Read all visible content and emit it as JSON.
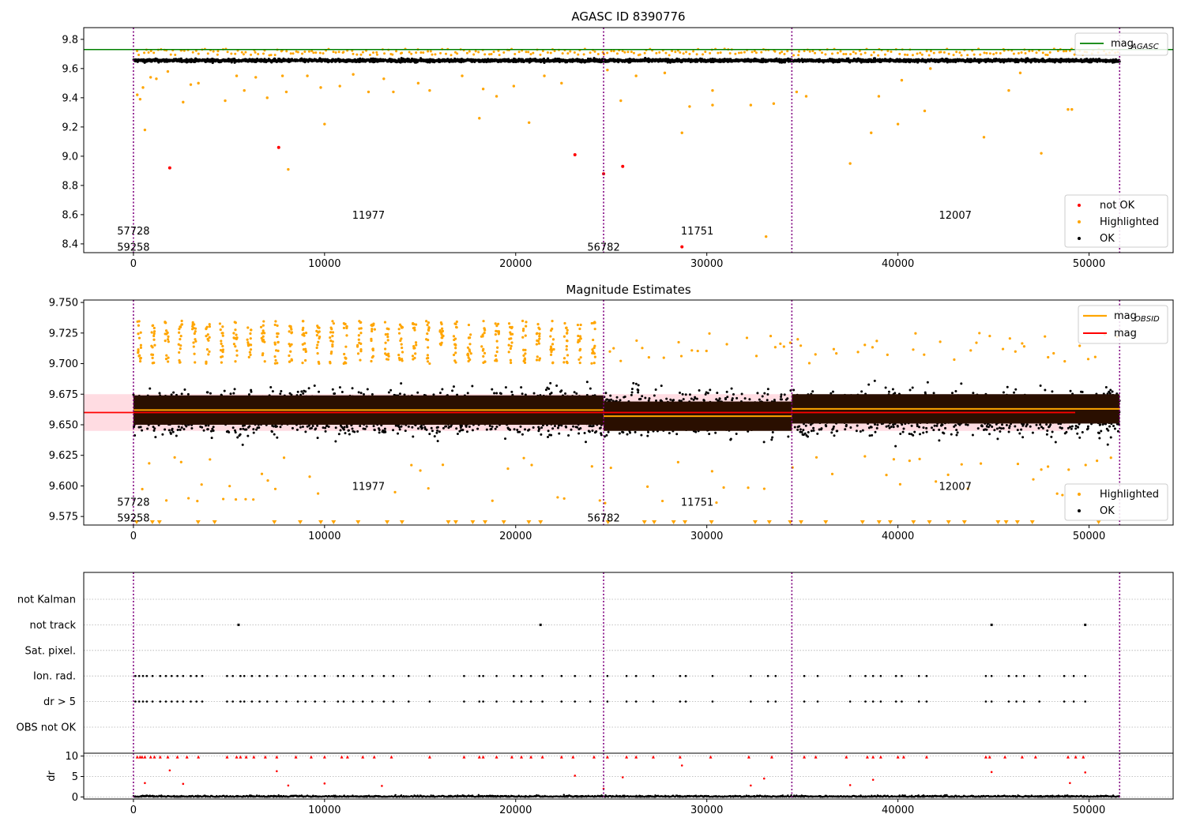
{
  "chart_data": [
    {
      "type": "scatter",
      "title": "AGASC ID 8390776",
      "xlim": [
        -2600,
        54400
      ],
      "ylim": [
        8.34,
        9.88
      ],
      "xticks": [
        0,
        10000,
        20000,
        30000,
        40000,
        50000
      ],
      "yticks": [
        8.4,
        8.6,
        8.8,
        9.0,
        9.2,
        9.4,
        9.6,
        9.8
      ],
      "ytick_decimals": 1,
      "hlines": [
        {
          "y": 9.73,
          "color": "#008000",
          "label": "mag_AGASC"
        }
      ],
      "obs_boundaries": [
        0,
        24600,
        34450,
        51600
      ],
      "obs_labels": [
        {
          "text": "57728",
          "x": 0,
          "y": 8.49
        },
        {
          "text": "59258",
          "x": 0,
          "y": 8.38
        },
        {
          "text": "11977",
          "x": 12300,
          "y": 8.6
        },
        {
          "text": "56782",
          "x": 24600,
          "y": 8.38
        },
        {
          "text": "11751",
          "x": 29500,
          "y": 8.49
        },
        {
          "text": "12007",
          "x": 43000,
          "y": 8.6
        }
      ],
      "series": [
        {
          "name": "not OK",
          "color": "#ff0000",
          "points": [
            [
              1900,
              8.92
            ],
            [
              7600,
              9.06
            ],
            [
              23100,
              9.01
            ],
            [
              24600,
              8.88
            ],
            [
              25600,
              8.93
            ],
            [
              28700,
              8.38
            ]
          ]
        },
        {
          "name": "Highlighted",
          "color": "#ffa500",
          "points": [
            [
              200,
              9.42
            ],
            [
              350,
              9.39
            ],
            [
              500,
              9.47
            ],
            [
              600,
              9.18
            ],
            [
              900,
              9.54
            ],
            [
              1200,
              9.53
            ],
            [
              1800,
              9.58
            ],
            [
              2600,
              9.37
            ],
            [
              3000,
              9.49
            ],
            [
              3400,
              9.5
            ],
            [
              4800,
              9.38
            ],
            [
              5400,
              9.55
            ],
            [
              5800,
              9.45
            ],
            [
              6400,
              9.54
            ],
            [
              7000,
              9.4
            ],
            [
              7800,
              9.55
            ],
            [
              8000,
              9.44
            ],
            [
              8100,
              8.91
            ],
            [
              9100,
              9.55
            ],
            [
              9800,
              9.47
            ],
            [
              10000,
              9.22
            ],
            [
              10800,
              9.48
            ],
            [
              11500,
              9.56
            ],
            [
              12300,
              9.44
            ],
            [
              13100,
              9.53
            ],
            [
              13600,
              9.44
            ],
            [
              14900,
              9.5
            ],
            [
              15500,
              9.45
            ],
            [
              17200,
              9.55
            ],
            [
              18100,
              9.26
            ],
            [
              18300,
              9.46
            ],
            [
              19000,
              9.41
            ],
            [
              19900,
              9.48
            ],
            [
              20700,
              9.23
            ],
            [
              21500,
              9.55
            ],
            [
              22400,
              9.5
            ],
            [
              24800,
              9.59
            ],
            [
              25500,
              9.38
            ],
            [
              26300,
              9.55
            ],
            [
              27800,
              9.57
            ],
            [
              28700,
              9.16
            ],
            [
              29100,
              9.34
            ],
            [
              30300,
              9.35
            ],
            [
              30300,
              9.45
            ],
            [
              32300,
              9.35
            ],
            [
              33500,
              9.36
            ],
            [
              34700,
              9.44
            ],
            [
              35200,
              9.41
            ],
            [
              37500,
              8.95
            ],
            [
              38600,
              9.16
            ],
            [
              39000,
              9.41
            ],
            [
              40000,
              9.22
            ],
            [
              40200,
              9.52
            ],
            [
              41400,
              9.31
            ],
            [
              41700,
              9.6
            ],
            [
              44500,
              9.13
            ],
            [
              45800,
              9.45
            ],
            [
              46400,
              9.57
            ],
            [
              47500,
              9.02
            ],
            [
              48900,
              9.32
            ],
            [
              49100,
              9.32
            ],
            [
              33100,
              8.45
            ]
          ]
        },
        {
          "name": "OK",
          "color": "#000000",
          "band": [
            9.635,
            9.675
          ],
          "density": "dense"
        }
      ],
      "legend": {
        "lines_position": "top-right",
        "markers_position": "bottom-right"
      }
    },
    {
      "type": "scatter",
      "title": "Magnitude Estimates",
      "xlim": [
        -2600,
        54400
      ],
      "ylim": [
        9.568,
        9.752
      ],
      "xticks": [
        0,
        10000,
        20000,
        30000,
        40000,
        50000
      ],
      "yticks": [
        9.575,
        9.6,
        9.625,
        9.65,
        9.675,
        9.7,
        9.725,
        9.75
      ],
      "ytick_decimals": 3,
      "mag": 9.66,
      "mag_band": [
        9.645,
        9.675
      ],
      "mag_obsid": [
        {
          "x0": 0,
          "x1": 24600,
          "y": 9.662
        },
        {
          "x0": 24600,
          "x1": 34450,
          "y": 9.657
        },
        {
          "x0": 34450,
          "x1": 51600,
          "y": 9.663
        }
      ],
      "obs_boundaries": [
        0,
        24600,
        34450,
        51600
      ],
      "obs_labels": [
        {
          "text": "57728",
          "x": 0,
          "y": 9.587
        },
        {
          "text": "59258",
          "x": 0,
          "y": 9.574
        },
        {
          "text": "11977",
          "x": 12300,
          "y": 9.6
        },
        {
          "text": "56782",
          "x": 24600,
          "y": 9.574
        },
        {
          "text": "11751",
          "x": 29500,
          "y": 9.587
        },
        {
          "text": "12007",
          "x": 43000,
          "y": 9.6
        }
      ],
      "series": [
        {
          "name": "Highlighted",
          "color": "#ffa500",
          "description": "spiky outliers above 9.70 and below 9.63, clipped triangles at bottom"
        },
        {
          "name": "OK",
          "color": "#000000",
          "band": [
            9.62,
            9.7
          ]
        }
      ],
      "legend": {
        "lines_position": "top-right",
        "markers_position": "bottom-right"
      }
    },
    {
      "type": "scatter",
      "xlim": [
        -2600,
        54400
      ],
      "categories": [
        "not Kalman",
        "not track",
        "Sat. pixel.",
        "Ion. rad.",
        "dr > 5",
        "OBS not OK"
      ],
      "flag_points": {
        "not track": [
          5500,
          21300,
          44900,
          49800
        ],
        "Ion. rad.": [
          100,
          300,
          500,
          700,
          1000,
          1400,
          1700,
          2000,
          2300,
          2600,
          3000,
          3300,
          3600,
          4900,
          5200,
          5600,
          5800,
          6200,
          6600,
          7000,
          7500,
          8000,
          8600,
          9000,
          9500,
          10000,
          10700,
          11000,
          11500,
          12000,
          12500,
          13100,
          13600,
          14400,
          15500,
          17300,
          18100,
          18300,
          19000,
          19900,
          20300,
          20800,
          21400,
          22400,
          23100,
          23900,
          24800,
          25800,
          26300,
          27200,
          28600,
          28900,
          30300,
          32300,
          33200,
          33600,
          35100,
          35800,
          37500,
          38300,
          38700,
          39100,
          39900,
          40200,
          41100,
          41500,
          44600,
          44900,
          45800,
          46200,
          46600,
          47400,
          48700,
          49200,
          49800
        ]
      },
      "dr": {
        "ylim": [
          -0.5,
          10.7
        ],
        "yticks": [
          0,
          5,
          10
        ],
        "ylabel": "dr",
        "spikes": [
          [
            1900,
            6.5
          ],
          [
            2600,
            3.2
          ],
          [
            7500,
            6.3
          ],
          [
            8100,
            2.8
          ],
          [
            10000,
            3.3
          ],
          [
            13000,
            2.7
          ],
          [
            23100,
            5.2
          ],
          [
            25600,
            4.8
          ],
          [
            28700,
            7.7
          ],
          [
            32300,
            2.8
          ],
          [
            33000,
            4.5
          ],
          [
            37500,
            2.9
          ],
          [
            38700,
            4.2
          ],
          [
            44900,
            6.1
          ],
          [
            49000,
            3.4
          ],
          [
            49800,
            6.0
          ],
          [
            600,
            3.4
          ],
          [
            24600,
            2.0
          ]
        ],
        "saturated_x": [
          200,
          350,
          450,
          600,
          900,
          1100,
          1400,
          1800,
          2300,
          2800,
          3400,
          4900,
          5400,
          5600,
          5900,
          6300,
          6900,
          7500,
          8500,
          9300,
          10000,
          10900,
          11200,
          12000,
          12600,
          13500,
          15500,
          17300,
          18100,
          18300,
          19000,
          19800,
          20300,
          20800,
          21400,
          22400,
          23000,
          24100,
          24800,
          25800,
          26300,
          27200,
          28600,
          30200,
          32200,
          33400,
          35100,
          35700,
          37300,
          38400,
          38700,
          39100,
          40000,
          40300,
          41500,
          44600,
          44800,
          45600,
          46500,
          47200,
          48900,
          49300,
          49700
        ]
      },
      "obs_boundaries": [
        0,
        24600,
        34450,
        51600
      ]
    }
  ]
}
